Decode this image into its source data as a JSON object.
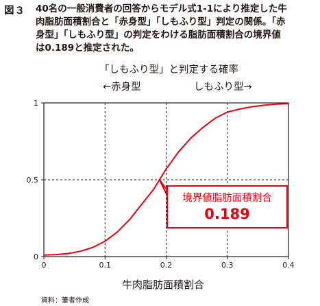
{
  "figure": {
    "label": "図３",
    "caption_lines": [
      "40名の一般消費者の回答からモデル式1-1により推定した牛",
      "肉脂肪面積割合と「赤身型」「しもふり型」判定の関係。「赤",
      "身型」「しもふり型」の判定をわける脂肪面積割合の境界値",
      "は0.189と推定された。"
    ],
    "source": "資料：筆者作成"
  },
  "chart_data": {
    "type": "line",
    "title": "「しもふり型」と判定する確率",
    "direction_left": "←赤身型",
    "direction_right": "しもふり型→",
    "xlabel": "牛肉脂肪面積割合",
    "ylabel": "",
    "xlim": [
      0,
      0.4
    ],
    "ylim": [
      0,
      1
    ],
    "xticks": [
      "0",
      "0.1",
      "0.2",
      "0.3",
      "0.4"
    ],
    "yticks": [
      "0",
      "0.5",
      "1"
    ],
    "grid": "dashed at x=0.1, 0.2, 0.3 and y=0.5",
    "series": [
      {
        "color": "#e60012",
        "x": [
          0,
          0.02,
          0.04,
          0.06,
          0.08,
          0.1,
          0.12,
          0.14,
          0.16,
          0.18,
          0.189,
          0.2,
          0.22,
          0.24,
          0.26,
          0.28,
          0.3,
          0.32,
          0.34,
          0.36,
          0.38,
          0.4
        ],
        "y": [
          0.01,
          0.013,
          0.02,
          0.035,
          0.06,
          0.1,
          0.16,
          0.24,
          0.34,
          0.44,
          0.5,
          0.57,
          0.68,
          0.77,
          0.84,
          0.9,
          0.94,
          0.96,
          0.975,
          0.985,
          0.992,
          0.995
        ]
      }
    ],
    "annotation": {
      "title": "境界値脂肪面積割合",
      "value": "0.189",
      "x": 0.189,
      "y": 0.5,
      "color": "#e60012"
    }
  }
}
